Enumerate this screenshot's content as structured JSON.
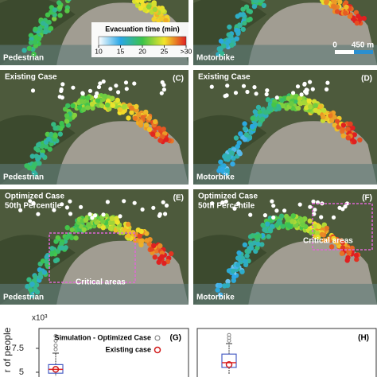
{
  "colorbar": {
    "title": "Evacuation time (min)",
    "range": [
      10,
      30
    ],
    "ticks": [
      10,
      15,
      20,
      25,
      {
        "value": 30,
        "label": ">30"
      }
    ],
    "colors": [
      "#ffffff",
      "#2aa7e6",
      "#3cc34a",
      "#f2e52b",
      "#e02020"
    ]
  },
  "scale_bar": {
    "start": "0",
    "end": "450 m"
  },
  "panels": [
    {
      "mode": "Pedestrian"
    },
    {
      "mode": "Motorbike"
    },
    {
      "case": "Existing Case",
      "tag": "(C)",
      "mode": "Pedestrian"
    },
    {
      "case": "Existing Case",
      "tag": "(D)",
      "mode": "Motorbike"
    },
    {
      "case": "Optimized Case",
      "percentile": "50th Percentile",
      "tag": "(E)",
      "note": "Critical areas",
      "mode": "Pedestrian"
    },
    {
      "case": "Optimized Case",
      "percentile": "50th Percentile",
      "tag": "(F)",
      "note": "Critical areas",
      "mode": "Motorbike"
    }
  ],
  "box_plot": {
    "multiplier": "x10³",
    "y_label": "r of people",
    "ylim": [
      4.5,
      9.5
    ],
    "yticks": [
      7.5,
      5
    ],
    "legend": {
      "simulation": "Simulation - Optimized Case",
      "existing": "Existing case"
    },
    "panels": [
      {
        "tag": "(G)",
        "low": 4.6,
        "q1": 4.9,
        "median": 5.3,
        "q3": 5.8,
        "high": 7.0,
        "outliers": [
          7.4,
          7.8,
          8.3,
          8.8
        ],
        "existing": 5.3
      },
      {
        "tag": "(H)",
        "low": 4.8,
        "q1": 5.5,
        "median": 6.0,
        "q3": 6.9,
        "high": 8.0,
        "outliers": [
          8.3,
          8.6,
          8.9
        ],
        "existing": 5.8
      }
    ]
  }
}
